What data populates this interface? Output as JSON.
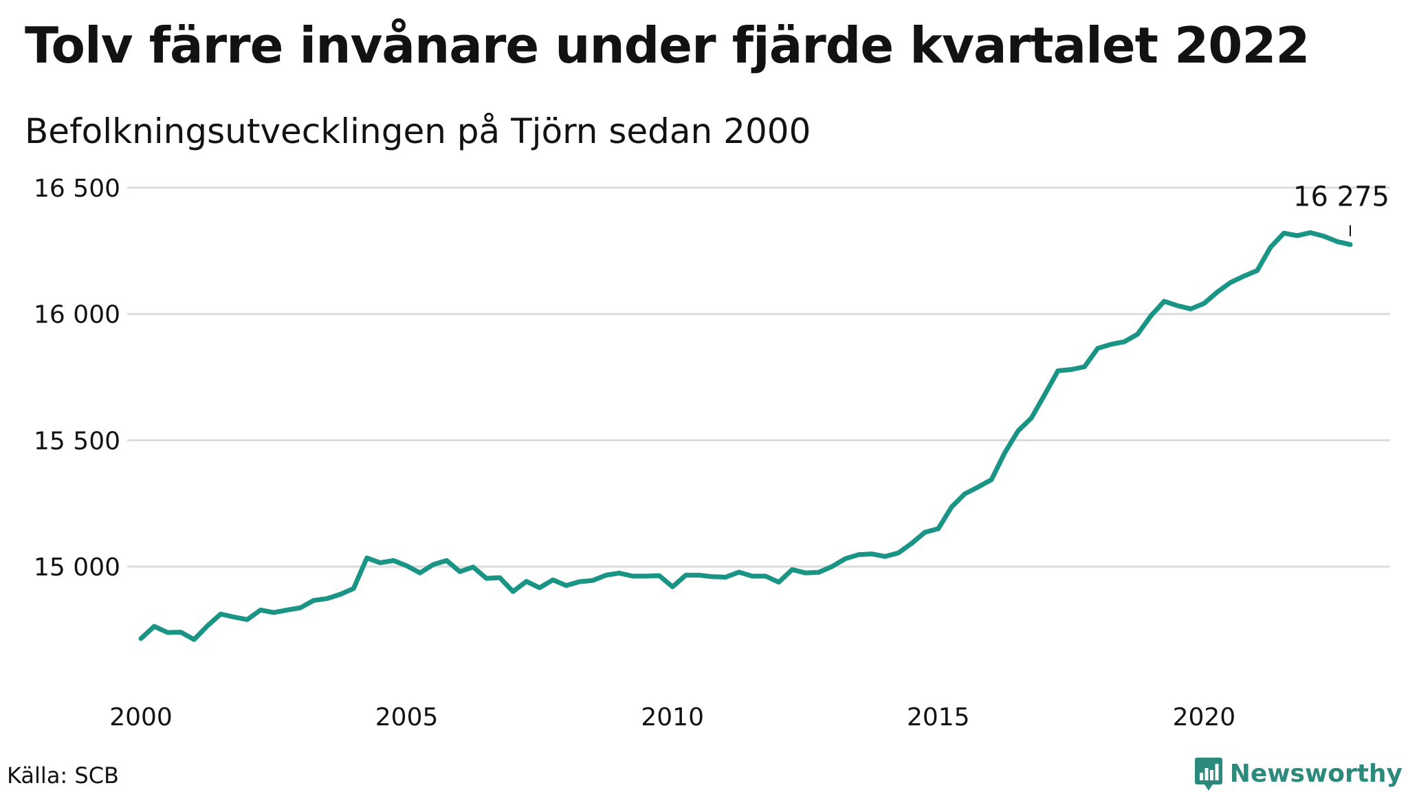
{
  "header": {
    "title": "Tolv färre invånare under fjärde kvartalet 2022",
    "subtitle": "Befolkningsutvecklingen på Tjörn sedan 2000"
  },
  "footer": {
    "source": "Källa: SCB",
    "brand": "Newsworthy"
  },
  "colors": {
    "line": "#1a9585",
    "grid": "#dcdcdc",
    "text": "#121212",
    "brand": "#2b8a7c"
  },
  "chart_data": {
    "type": "line",
    "title": "",
    "xlabel": "",
    "ylabel": "",
    "xlim": [
      2000,
      2023.5
    ],
    "ylim": [
      14630,
      16500
    ],
    "x_ticks": [
      2000,
      2005,
      2010,
      2015,
      2020
    ],
    "x_tick_labels": [
      "2000",
      "2005",
      "2010",
      "2015",
      "2020"
    ],
    "y_ticks": [
      15000,
      15500,
      16000,
      16500
    ],
    "y_tick_labels": [
      "15 000",
      "15 500",
      "16 000",
      "16 500"
    ],
    "grid": true,
    "legend": "none",
    "series": [
      {
        "x": [
          2000.0,
          2000.25,
          2000.5,
          2000.75,
          2001.0,
          2001.25,
          2001.5,
          2001.75,
          2002.0,
          2002.25,
          2002.5,
          2002.75,
          2003.0,
          2003.25,
          2003.5,
          2003.75,
          2004.0,
          2004.25,
          2004.5,
          2004.75,
          2005.0,
          2005.25,
          2005.5,
          2005.75,
          2006.0,
          2006.25,
          2006.5,
          2006.75,
          2007.0,
          2007.25,
          2007.5,
          2007.75,
          2008.0,
          2008.25,
          2008.5,
          2008.75,
          2009.0,
          2009.25,
          2009.5,
          2009.75,
          2010.0,
          2010.25,
          2010.5,
          2010.75,
          2011.0,
          2011.25,
          2011.5,
          2011.75,
          2012.0,
          2012.25,
          2012.5,
          2012.75,
          2013.0,
          2013.25,
          2013.5,
          2013.75,
          2014.0,
          2014.25,
          2014.5,
          2014.75,
          2015.0,
          2015.25,
          2015.5,
          2015.75,
          2016.0,
          2016.25,
          2016.5,
          2016.75,
          2017.0,
          2017.25,
          2017.5,
          2017.75,
          2018.0,
          2018.25,
          2018.5,
          2018.75,
          2019.0,
          2019.25,
          2019.5,
          2019.75,
          2020.0,
          2020.25,
          2020.5,
          2020.75,
          2021.0,
          2021.25,
          2021.5,
          2021.75,
          2022.0,
          2022.25,
          2022.5,
          2022.75
        ],
        "values": [
          14715,
          14763,
          14739,
          14740,
          14711,
          14765,
          14812,
          14800,
          14790,
          14828,
          14818,
          14828,
          14837,
          14866,
          14873,
          14890,
          14913,
          15034,
          15015,
          15024,
          15003,
          14975,
          15008,
          15024,
          14980,
          14998,
          14953,
          14956,
          14901,
          14941,
          14916,
          14947,
          14925,
          14940,
          14945,
          14966,
          14974,
          14962,
          14962,
          14964,
          14920,
          14966,
          14966,
          14960,
          14958,
          14978,
          14962,
          14962,
          14938,
          14988,
          14975,
          14977,
          15000,
          15031,
          15047,
          15050,
          15040,
          15054,
          15092,
          15136,
          15150,
          15236,
          15288,
          15315,
          15344,
          15450,
          15537,
          15588,
          15680,
          15775,
          15780,
          15791,
          15864,
          15880,
          15890,
          15920,
          15993,
          16050,
          16033,
          16020,
          16042,
          16087,
          16125,
          16150,
          16172,
          16264,
          16320,
          16310,
          16322,
          16308,
          16287,
          16275
        ]
      }
    ],
    "annotations": [
      {
        "x": 2022.75,
        "y": 16275,
        "text": "16 275"
      }
    ]
  }
}
